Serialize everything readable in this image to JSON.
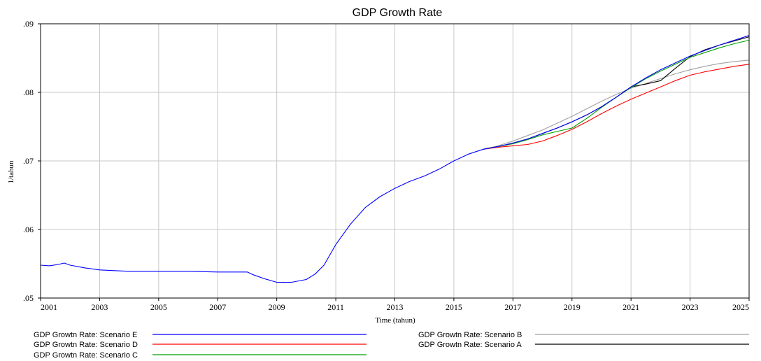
{
  "chart_data": {
    "type": "line",
    "title": "GDP Growth Rate",
    "xlabel": "Time (tahun)",
    "ylabel": "1/tahun",
    "xlim": [
      2001,
      2025
    ],
    "ylim": [
      0.05,
      0.09
    ],
    "x_ticks": [
      2001,
      2003,
      2005,
      2007,
      2009,
      2011,
      2013,
      2015,
      2017,
      2019,
      2021,
      2023,
      2025
    ],
    "x_tick_labels": [
      "2001",
      "2003",
      "2005",
      "2007",
      "2009",
      "2011",
      "2013",
      "2015",
      "2017",
      "2019",
      "2021",
      "2023",
      "2025"
    ],
    "y_ticks": [
      0.05,
      0.06,
      0.07,
      0.08,
      0.09
    ],
    "y_tick_labels": [
      ".05",
      ".06",
      ".07",
      ".08",
      ".09"
    ],
    "grid": true,
    "legend_position": "bottom",
    "series": [
      {
        "name": "GDP Growtn Rate: Scenario E",
        "color": "#0000ff",
        "x": [
          2001,
          2001.3,
          2001.6,
          2001.8,
          2002,
          2002.5,
          2003,
          2003.5,
          2004,
          2005,
          2006,
          2007,
          2008,
          2008.2,
          2008.6,
          2009,
          2009.5,
          2010,
          2010.3,
          2010.6,
          2011,
          2011.5,
          2012,
          2012.5,
          2013,
          2013.5,
          2014,
          2014.5,
          2015,
          2015.5,
          2016,
          2016.5,
          2017,
          2017.5,
          2018,
          2018.5,
          2019,
          2019.5,
          2020,
          2020.5,
          2021,
          2021.5,
          2022,
          2022.5,
          2023,
          2023.5,
          2024,
          2024.5,
          2025
        ],
        "y": [
          0.0548,
          0.0547,
          0.0549,
          0.0551,
          0.0548,
          0.0544,
          0.0541,
          0.054,
          0.0539,
          0.0539,
          0.0539,
          0.0538,
          0.0538,
          0.0534,
          0.0528,
          0.0523,
          0.0523,
          0.0527,
          0.0535,
          0.0548,
          0.0578,
          0.0608,
          0.0632,
          0.0648,
          0.066,
          0.067,
          0.0678,
          0.0688,
          0.07,
          0.071,
          0.0717,
          0.0721,
          0.0726,
          0.0732,
          0.074,
          0.0748,
          0.0757,
          0.0767,
          0.0779,
          0.0793,
          0.0808,
          0.0821,
          0.0833,
          0.0843,
          0.0853,
          0.0861,
          0.0869,
          0.0876,
          0.0883
        ]
      },
      {
        "name": "GDP Growtn Rate: Scenario D",
        "color": "#ff0000",
        "x": [
          2016,
          2016.5,
          2017,
          2017.5,
          2018,
          2018.5,
          2019,
          2019.5,
          2020,
          2020.5,
          2021,
          2021.5,
          2022,
          2022.5,
          2023,
          2023.5,
          2024,
          2024.5,
          2025
        ],
        "y": [
          0.0717,
          0.072,
          0.0722,
          0.0724,
          0.0729,
          0.0737,
          0.0746,
          0.0757,
          0.0769,
          0.078,
          0.079,
          0.0799,
          0.0808,
          0.0817,
          0.0825,
          0.083,
          0.0834,
          0.0838,
          0.0841
        ]
      },
      {
        "name": "GDP Growtn Rate: Scenario C",
        "color": "#00a000",
        "x": [
          2016,
          2016.5,
          2017,
          2017.5,
          2018,
          2018.5,
          2019,
          2019.5,
          2020,
          2020.5,
          2021,
          2021.5,
          2022,
          2022.5,
          2023,
          2023.5,
          2024,
          2024.5,
          2025
        ],
        "y": [
          0.0717,
          0.0721,
          0.0725,
          0.0731,
          0.0738,
          0.0743,
          0.0748,
          0.0762,
          0.0778,
          0.0793,
          0.0807,
          0.082,
          0.0831,
          0.0841,
          0.0851,
          0.0858,
          0.0865,
          0.0871,
          0.0876
        ]
      },
      {
        "name": "GDP Growtn Rate: Scenario B",
        "color": "#a0a0a0",
        "x": [
          2016,
          2016.5,
          2017,
          2017.5,
          2018,
          2018.5,
          2019,
          2019.5,
          2020,
          2020.5,
          2021,
          2021.5,
          2022,
          2022.5,
          2023,
          2023.5,
          2024,
          2024.5,
          2025
        ],
        "y": [
          0.0717,
          0.0722,
          0.0729,
          0.0737,
          0.0745,
          0.0755,
          0.0765,
          0.0776,
          0.0787,
          0.0797,
          0.0806,
          0.0813,
          0.082,
          0.0827,
          0.0833,
          0.0838,
          0.0842,
          0.0845,
          0.0847
        ]
      },
      {
        "name": "GDP Growtn Rate: Scenario A",
        "color": "#000000",
        "x": [
          2016,
          2016.5,
          2017,
          2017.5,
          2018,
          2018.5,
          2019,
          2019.5,
          2020,
          2020.5,
          2021,
          2021.5,
          2022,
          2022.5,
          2023,
          2023.5,
          2024,
          2024.5,
          2025
        ],
        "y": [
          0.0717,
          0.0721,
          0.0726,
          0.0732,
          0.074,
          0.0748,
          0.0757,
          0.0767,
          0.0779,
          0.0793,
          0.0808,
          0.0812,
          0.0817,
          0.0835,
          0.0852,
          0.0862,
          0.0869,
          0.0875,
          0.0881
        ]
      }
    ]
  }
}
